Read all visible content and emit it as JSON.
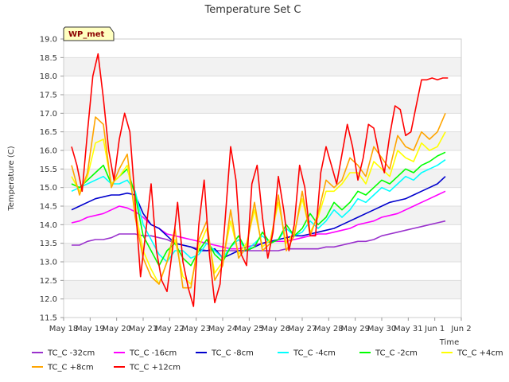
{
  "chart_data": {
    "type": "line",
    "title": "Temperature Set C",
    "xlabel": "Time",
    "ylabel": "Temperature (C)",
    "ylim": [
      11.5,
      19.0
    ],
    "xlim": [
      0,
      15
    ],
    "yticks": [
      11.5,
      12.0,
      12.5,
      13.0,
      13.5,
      14.0,
      14.5,
      15.0,
      15.5,
      16.0,
      16.5,
      17.0,
      17.5,
      18.0,
      18.5,
      19.0
    ],
    "yticklabels": [
      "11.5",
      "12.0",
      "12.5",
      "13.0",
      "13.5",
      "14.0",
      "14.5",
      "15.0",
      "15.5",
      "16.0",
      "16.5",
      "17.0",
      "17.5",
      "18.0",
      "18.5",
      "19.0"
    ],
    "xticks": [
      0,
      1,
      2,
      3,
      4,
      5,
      6,
      7,
      8,
      9,
      10,
      11,
      12,
      13,
      14,
      15
    ],
    "xticklabels": [
      "May 18",
      "May 19",
      "May 20",
      "May 21",
      "May 22",
      "May 23",
      "May 24",
      "May 25",
      "May 26",
      "May 27",
      "May 28",
      "May 29",
      "May 30",
      "May 31",
      "Jun 1",
      "Jun 2"
    ],
    "badge": "WP_met",
    "series": [
      {
        "name": "TC_C -32cm",
        "color": "#9a32cd",
        "x": [
          0.3,
          0.6,
          0.9,
          1.2,
          1.5,
          1.8,
          2.1,
          2.4,
          2.7,
          3.0,
          3.3,
          3.6,
          3.9,
          4.2,
          4.5,
          4.8,
          5.1,
          5.4,
          5.7,
          6.0,
          6.3,
          6.6,
          6.9,
          7.2,
          7.5,
          7.8,
          8.1,
          8.4,
          8.7,
          9.0,
          9.3,
          9.6,
          9.9,
          10.2,
          10.5,
          10.8,
          11.1,
          11.4,
          11.7,
          12.0,
          12.3,
          12.6,
          12.9,
          13.2,
          13.5,
          13.8,
          14.1,
          14.4
        ],
        "values": [
          13.45,
          13.45,
          13.55,
          13.6,
          13.6,
          13.65,
          13.75,
          13.75,
          13.75,
          13.7,
          13.7,
          13.65,
          13.6,
          13.5,
          13.45,
          13.4,
          13.35,
          13.3,
          13.3,
          13.3,
          13.3,
          13.3,
          13.3,
          13.3,
          13.3,
          13.3,
          13.3,
          13.35,
          13.35,
          13.35,
          13.35,
          13.35,
          13.4,
          13.4,
          13.45,
          13.5,
          13.55,
          13.55,
          13.6,
          13.7,
          13.75,
          13.8,
          13.85,
          13.9,
          13.95,
          14.0,
          14.05,
          14.1
        ]
      },
      {
        "name": "TC_C -16cm",
        "color": "#ff00ff",
        "x": [
          0.3,
          0.6,
          0.9,
          1.2,
          1.5,
          1.8,
          2.1,
          2.4,
          2.7,
          3.0,
          3.3,
          3.6,
          3.9,
          4.2,
          4.5,
          4.8,
          5.1,
          5.4,
          5.7,
          6.0,
          6.3,
          6.6,
          6.9,
          7.2,
          7.5,
          7.8,
          8.1,
          8.4,
          8.7,
          9.0,
          9.3,
          9.6,
          9.9,
          10.2,
          10.5,
          10.8,
          11.1,
          11.4,
          11.7,
          12.0,
          12.3,
          12.6,
          12.9,
          13.2,
          13.5,
          13.8,
          14.1,
          14.4
        ],
        "values": [
          14.05,
          14.1,
          14.2,
          14.25,
          14.3,
          14.4,
          14.5,
          14.45,
          14.35,
          14.2,
          14.0,
          13.9,
          13.75,
          13.7,
          13.65,
          13.6,
          13.55,
          13.5,
          13.45,
          13.4,
          13.35,
          13.35,
          13.4,
          13.45,
          13.5,
          13.55,
          13.55,
          13.55,
          13.6,
          13.65,
          13.7,
          13.75,
          13.75,
          13.8,
          13.85,
          13.9,
          14.0,
          14.05,
          14.1,
          14.2,
          14.25,
          14.3,
          14.4,
          14.5,
          14.6,
          14.7,
          14.8,
          14.9
        ]
      },
      {
        "name": "TC_C -8cm",
        "color": "#0000cd",
        "x": [
          0.3,
          0.6,
          0.9,
          1.2,
          1.5,
          1.8,
          2.1,
          2.4,
          2.7,
          3.0,
          3.3,
          3.6,
          3.9,
          4.2,
          4.5,
          4.8,
          5.1,
          5.4,
          5.7,
          6.0,
          6.3,
          6.6,
          6.9,
          7.2,
          7.5,
          7.8,
          8.1,
          8.4,
          8.7,
          9.0,
          9.3,
          9.6,
          9.9,
          10.2,
          10.5,
          10.8,
          11.1,
          11.4,
          11.7,
          12.0,
          12.3,
          12.6,
          12.9,
          13.2,
          13.5,
          13.8,
          14.1,
          14.4
        ],
        "values": [
          14.4,
          14.5,
          14.6,
          14.7,
          14.75,
          14.8,
          14.8,
          14.85,
          14.8,
          14.3,
          14.0,
          13.9,
          13.7,
          13.5,
          13.45,
          13.4,
          13.3,
          13.3,
          13.35,
          13.1,
          13.2,
          13.3,
          13.3,
          13.4,
          13.5,
          13.55,
          13.6,
          13.65,
          13.7,
          13.7,
          13.75,
          13.8,
          13.85,
          13.9,
          14.0,
          14.1,
          14.2,
          14.3,
          14.4,
          14.5,
          14.6,
          14.65,
          14.7,
          14.8,
          14.9,
          15.0,
          15.1,
          15.3
        ]
      },
      {
        "name": "TC_C -4cm",
        "color": "#00ffff",
        "x": [
          0.3,
          0.6,
          0.9,
          1.2,
          1.5,
          1.8,
          2.1,
          2.4,
          2.7,
          3.0,
          3.3,
          3.6,
          3.9,
          4.2,
          4.5,
          4.8,
          5.1,
          5.4,
          5.7,
          6.0,
          6.3,
          6.6,
          6.9,
          7.2,
          7.5,
          7.8,
          8.1,
          8.4,
          8.7,
          9.0,
          9.3,
          9.6,
          9.9,
          10.2,
          10.5,
          10.8,
          11.1,
          11.4,
          11.7,
          12.0,
          12.3,
          12.6,
          12.9,
          13.2,
          13.5,
          13.8,
          14.1,
          14.4
        ],
        "values": [
          14.9,
          15.0,
          15.1,
          15.2,
          15.3,
          15.1,
          15.1,
          15.2,
          14.9,
          14.0,
          13.6,
          13.2,
          13.0,
          13.3,
          13.3,
          13.1,
          13.2,
          13.5,
          13.3,
          13.1,
          13.4,
          13.6,
          13.3,
          13.5,
          13.7,
          13.5,
          13.6,
          13.9,
          13.7,
          13.8,
          14.1,
          13.9,
          14.1,
          14.4,
          14.2,
          14.4,
          14.7,
          14.6,
          14.8,
          15.0,
          14.9,
          15.1,
          15.3,
          15.2,
          15.4,
          15.5,
          15.6,
          15.75
        ]
      },
      {
        "name": "TC_C -2cm",
        "color": "#00ff00",
        "x": [
          0.3,
          0.6,
          0.9,
          1.2,
          1.5,
          1.8,
          2.1,
          2.4,
          2.7,
          3.0,
          3.3,
          3.6,
          3.9,
          4.2,
          4.5,
          4.8,
          5.1,
          5.4,
          5.7,
          6.0,
          6.3,
          6.6,
          6.9,
          7.2,
          7.5,
          7.8,
          8.1,
          8.4,
          8.7,
          9.0,
          9.3,
          9.6,
          9.9,
          10.2,
          10.5,
          10.8,
          11.1,
          11.4,
          11.7,
          12.0,
          12.3,
          12.6,
          12.9,
          13.2,
          13.5,
          13.8,
          14.1,
          14.4
        ],
        "values": [
          15.1,
          15.0,
          15.2,
          15.4,
          15.6,
          15.1,
          15.3,
          15.5,
          14.8,
          13.7,
          13.3,
          12.9,
          13.3,
          13.5,
          13.1,
          12.9,
          13.3,
          13.6,
          13.2,
          13.0,
          13.4,
          13.7,
          13.3,
          13.4,
          13.8,
          13.5,
          13.6,
          14.0,
          13.7,
          13.9,
          14.3,
          14.0,
          14.2,
          14.6,
          14.4,
          14.6,
          14.9,
          14.8,
          15.0,
          15.2,
          15.1,
          15.3,
          15.5,
          15.4,
          15.6,
          15.7,
          15.85,
          15.95
        ]
      },
      {
        "name": "TC_C +4cm",
        "color": "#ffff00",
        "x": [
          0.3,
          0.6,
          0.9,
          1.2,
          1.5,
          1.8,
          2.1,
          2.4,
          2.7,
          3.0,
          3.3,
          3.6,
          3.9,
          4.2,
          4.5,
          4.8,
          5.1,
          5.4,
          5.7,
          6.0,
          6.3,
          6.6,
          6.9,
          7.2,
          7.5,
          7.8,
          8.1,
          8.4,
          8.7,
          9.0,
          9.3,
          9.6,
          9.9,
          10.2,
          10.5,
          10.8,
          11.1,
          11.4,
          11.7,
          12.0,
          12.3,
          12.6,
          12.9,
          13.2,
          13.5,
          13.8,
          14.1,
          14.4
        ],
        "values": [
          15.3,
          14.9,
          15.3,
          16.2,
          16.3,
          15.1,
          15.3,
          15.6,
          14.4,
          13.3,
          12.8,
          12.4,
          13.0,
          13.6,
          12.6,
          12.4,
          13.4,
          13.9,
          12.7,
          13.0,
          14.1,
          13.2,
          13.5,
          14.4,
          13.4,
          13.6,
          14.6,
          13.5,
          13.8,
          14.7,
          13.8,
          14.2,
          14.9,
          14.9,
          15.1,
          15.4,
          15.4,
          15.1,
          15.7,
          15.5,
          15.3,
          16.0,
          15.8,
          15.7,
          16.2,
          16.0,
          16.1,
          16.5
        ]
      },
      {
        "name": "TC_C +8cm",
        "color": "#ffa500",
        "x": [
          0.3,
          0.6,
          0.9,
          1.2,
          1.5,
          1.8,
          2.1,
          2.4,
          2.7,
          3.0,
          3.3,
          3.6,
          3.9,
          4.2,
          4.5,
          4.8,
          5.1,
          5.4,
          5.7,
          6.0,
          6.3,
          6.6,
          6.9,
          7.2,
          7.5,
          7.8,
          8.1,
          8.4,
          8.7,
          9.0,
          9.3,
          9.6,
          9.9,
          10.2,
          10.5,
          10.8,
          11.1,
          11.4,
          11.7,
          12.0,
          12.3,
          12.6,
          12.9,
          13.2,
          13.5,
          13.8,
          14.1,
          14.4
        ],
        "values": [
          15.6,
          14.8,
          15.4,
          16.9,
          16.7,
          15.0,
          15.5,
          15.9,
          14.2,
          13.1,
          12.6,
          12.4,
          13.0,
          13.9,
          12.3,
          12.3,
          13.6,
          14.1,
          12.5,
          12.9,
          14.4,
          13.1,
          13.4,
          14.6,
          13.3,
          13.5,
          14.8,
          13.3,
          13.7,
          14.9,
          13.7,
          14.3,
          15.2,
          15.0,
          15.2,
          15.8,
          15.6,
          15.3,
          16.1,
          15.8,
          15.5,
          16.4,
          16.1,
          16.0,
          16.5,
          16.3,
          16.5,
          17.0
        ]
      },
      {
        "name": "TC_C +12cm",
        "color": "#ff0000",
        "x": [
          0.3,
          0.5,
          0.7,
          0.9,
          1.1,
          1.3,
          1.5,
          1.7,
          1.9,
          2.1,
          2.3,
          2.5,
          2.7,
          2.9,
          3.1,
          3.3,
          3.5,
          3.7,
          3.9,
          4.1,
          4.3,
          4.5,
          4.7,
          4.9,
          5.1,
          5.3,
          5.5,
          5.7,
          5.9,
          6.1,
          6.3,
          6.5,
          6.7,
          6.9,
          7.1,
          7.3,
          7.5,
          7.7,
          7.9,
          8.1,
          8.3,
          8.5,
          8.7,
          8.9,
          9.1,
          9.3,
          9.5,
          9.7,
          9.9,
          10.1,
          10.3,
          10.5,
          10.7,
          10.9,
          11.1,
          11.3,
          11.5,
          11.7,
          11.9,
          12.1,
          12.3,
          12.5,
          12.7,
          12.9,
          13.1,
          13.3,
          13.5,
          13.7,
          13.9,
          14.1,
          14.3,
          14.5
        ],
        "values": [
          16.1,
          15.6,
          14.9,
          16.5,
          18.0,
          18.6,
          17.4,
          16.0,
          15.2,
          16.3,
          17.0,
          16.5,
          14.6,
          12.6,
          13.8,
          15.1,
          13.3,
          12.5,
          12.2,
          13.3,
          14.6,
          13.0,
          12.3,
          11.8,
          14.0,
          15.2,
          13.2,
          11.9,
          12.4,
          14.2,
          16.1,
          15.2,
          13.2,
          12.9,
          15.1,
          15.6,
          14.2,
          13.1,
          13.8,
          15.3,
          14.4,
          13.3,
          14.0,
          15.6,
          15.0,
          13.7,
          13.7,
          15.4,
          16.1,
          15.6,
          15.1,
          15.9,
          16.7,
          16.1,
          15.2,
          15.8,
          16.7,
          16.6,
          15.9,
          15.4,
          16.4,
          17.2,
          17.1,
          16.4,
          16.5,
          17.2,
          17.9,
          17.9,
          17.95,
          17.9,
          17.95,
          17.95
        ]
      }
    ]
  }
}
